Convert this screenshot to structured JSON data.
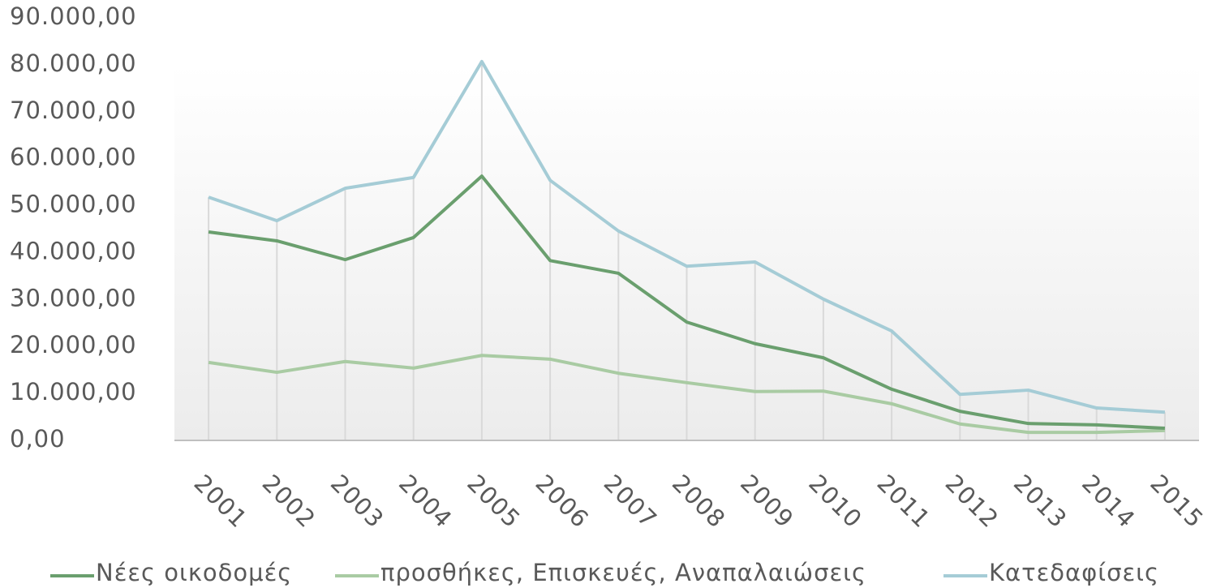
{
  "chart_data": {
    "type": "line",
    "categories": [
      "2001",
      "2002",
      "2003",
      "2004",
      "2005",
      "2006",
      "2007",
      "2008",
      "2009",
      "2010",
      "2011",
      "2012",
      "2013",
      "2014",
      "2015"
    ],
    "series": [
      {
        "name": "Νέες οικοδομές",
        "color": "#6a9f6e",
        "values": [
          44400,
          42500,
          38500,
          43200,
          56300,
          38300,
          35600,
          25200,
          20600,
          17600,
          10900,
          6200,
          3600,
          3300,
          2600
        ]
      },
      {
        "name": "προσθήκες, Επισκευές, Αναπαλαιώσεις",
        "color": "#a9cba3",
        "values": [
          16600,
          14500,
          16800,
          15400,
          18100,
          17300,
          14300,
          12300,
          10400,
          10500,
          7800,
          3500,
          1700,
          1700,
          2100
        ]
      },
      {
        "name": "Κατεδαφίσεις",
        "color": "#a5ccd6",
        "values": [
          51800,
          46800,
          53700,
          56000,
          80700,
          55400,
          44600,
          37100,
          38000,
          30100,
          23300,
          9800,
          10700,
          6900,
          6000
        ]
      }
    ],
    "ylim": [
      0,
      90000
    ],
    "yticks": [
      {
        "value": 0,
        "label": "0,00"
      },
      {
        "value": 10000,
        "label": "10.000,00"
      },
      {
        "value": 20000,
        "label": "20.000,00"
      },
      {
        "value": 30000,
        "label": "30.000,00"
      },
      {
        "value": 40000,
        "label": "40.000,00"
      },
      {
        "value": 50000,
        "label": "50.000,00"
      },
      {
        "value": 60000,
        "label": "60.000,00"
      },
      {
        "value": 70000,
        "label": "70.000,00"
      },
      {
        "value": 80000,
        "label": "80.000,00"
      },
      {
        "value": 90000,
        "label": "90.000,00"
      }
    ],
    "legend": "bottom"
  }
}
